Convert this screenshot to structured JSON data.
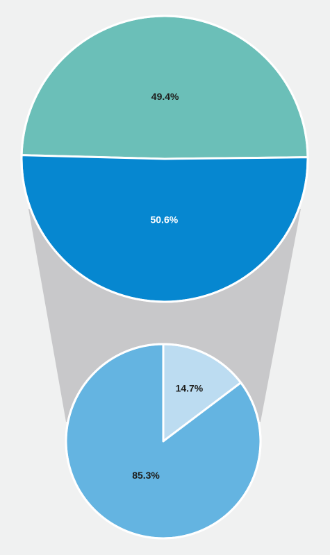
{
  "chart_data": [
    {
      "type": "pie",
      "slices": [
        {
          "label": "49.4%",
          "value": 49.4,
          "color": "#6bbfb8",
          "label_color": "#1d1d1b"
        },
        {
          "label": "50.6%",
          "value": 50.6,
          "color": "#0687d0",
          "label_color": "#ffffff"
        }
      ]
    },
    {
      "type": "pie",
      "slices": [
        {
          "label": "14.7%",
          "value": 14.7,
          "color": "#bcdcf1",
          "label_color": "#1d1d1b"
        },
        {
          "label": "85.3%",
          "value": 85.3,
          "color": "#64b4e1",
          "label_color": "#1d1d1b"
        }
      ]
    }
  ],
  "colors": {
    "background": "#f0f1f1",
    "connector": "#c8c8ca",
    "border": "#ffffff"
  }
}
